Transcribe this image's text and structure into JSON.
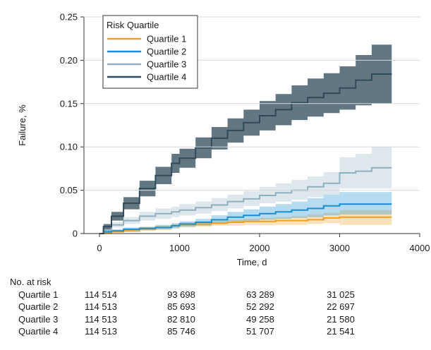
{
  "chart_data": {
    "type": "line",
    "ylabel": "Failure, %",
    "xlabel": "Time, d",
    "xlim": [
      0,
      4000
    ],
    "ylim": [
      0,
      0.25
    ],
    "x_ticks": [
      "0",
      "1000",
      "2000",
      "3000",
      "4000"
    ],
    "y_ticks": [
      "0",
      "0.05",
      "0.10",
      "0.15",
      "0.20",
      "0.25"
    ],
    "legend_title": "Risk Quartile",
    "legend_position": "top-left",
    "series": [
      {
        "name": "Quartile 1",
        "color": "#f0a020",
        "x": [
          0,
          50,
          150,
          300,
          500,
          700,
          900,
          1000,
          1200,
          1400,
          1600,
          1800,
          2000,
          2200,
          2400,
          2600,
          2800,
          3000,
          3200,
          3400,
          3650
        ],
        "y": [
          0,
          0.001,
          0.002,
          0.003,
          0.005,
          0.007,
          0.009,
          0.01,
          0.011,
          0.012,
          0.013,
          0.014,
          0.014,
          0.015,
          0.015,
          0.016,
          0.018,
          0.019,
          0.019,
          0.019,
          0.019
        ],
        "lower": [
          0,
          0.0,
          0.001,
          0.002,
          0.003,
          0.004,
          0.006,
          0.007,
          0.008,
          0.009,
          0.009,
          0.01,
          0.01,
          0.01,
          0.01,
          0.011,
          0.012,
          0.01,
          0.01,
          0.01,
          0.01
        ],
        "upper": [
          0,
          0.003,
          0.004,
          0.005,
          0.007,
          0.009,
          0.011,
          0.013,
          0.014,
          0.015,
          0.016,
          0.017,
          0.018,
          0.019,
          0.02,
          0.022,
          0.024,
          0.027,
          0.027,
          0.027,
          0.027
        ]
      },
      {
        "name": "Quartile 2",
        "color": "#1a8fd0",
        "x": [
          0,
          50,
          150,
          300,
          500,
          700,
          900,
          1000,
          1200,
          1400,
          1600,
          1800,
          2000,
          2200,
          2400,
          2600,
          2800,
          3000,
          3200,
          3400,
          3650
        ],
        "y": [
          0,
          0.002,
          0.003,
          0.005,
          0.006,
          0.007,
          0.009,
          0.011,
          0.013,
          0.016,
          0.019,
          0.021,
          0.023,
          0.025,
          0.027,
          0.029,
          0.032,
          0.034,
          0.034,
          0.034,
          0.034
        ],
        "lower": [
          0,
          0.001,
          0.002,
          0.003,
          0.004,
          0.005,
          0.006,
          0.008,
          0.009,
          0.011,
          0.013,
          0.015,
          0.016,
          0.017,
          0.018,
          0.019,
          0.021,
          0.022,
          0.022,
          0.022,
          0.022
        ],
        "upper": [
          0,
          0.004,
          0.005,
          0.007,
          0.008,
          0.01,
          0.012,
          0.014,
          0.017,
          0.021,
          0.025,
          0.028,
          0.031,
          0.034,
          0.037,
          0.041,
          0.045,
          0.048,
          0.048,
          0.048,
          0.048
        ]
      },
      {
        "name": "Quartile 3",
        "color": "#8fb0c0",
        "x": [
          0,
          50,
          150,
          300,
          500,
          700,
          900,
          1000,
          1200,
          1400,
          1600,
          1800,
          2000,
          2200,
          2400,
          2600,
          2800,
          3000,
          3200,
          3400,
          3650
        ],
        "y": [
          0,
          0.004,
          0.01,
          0.015,
          0.02,
          0.023,
          0.025,
          0.027,
          0.03,
          0.033,
          0.037,
          0.04,
          0.044,
          0.047,
          0.05,
          0.054,
          0.058,
          0.07,
          0.072,
          0.076,
          0.076
        ],
        "lower": [
          0,
          0.002,
          0.007,
          0.011,
          0.015,
          0.017,
          0.019,
          0.021,
          0.023,
          0.026,
          0.029,
          0.032,
          0.035,
          0.037,
          0.039,
          0.042,
          0.045,
          0.052,
          0.052,
          0.052,
          0.052
        ],
        "upper": [
          0,
          0.006,
          0.013,
          0.019,
          0.025,
          0.029,
          0.031,
          0.034,
          0.037,
          0.041,
          0.045,
          0.049,
          0.054,
          0.058,
          0.062,
          0.066,
          0.071,
          0.088,
          0.092,
          0.1,
          0.1
        ]
      },
      {
        "name": "Quartile 4",
        "color": "#2f4a5a",
        "x": [
          0,
          50,
          150,
          300,
          500,
          700,
          900,
          1000,
          1200,
          1400,
          1600,
          1800,
          2000,
          2200,
          2400,
          2600,
          2800,
          3000,
          3200,
          3400,
          3650
        ],
        "y": [
          0,
          0.008,
          0.02,
          0.035,
          0.052,
          0.067,
          0.081,
          0.087,
          0.099,
          0.11,
          0.119,
          0.128,
          0.136,
          0.143,
          0.151,
          0.157,
          0.162,
          0.168,
          0.177,
          0.184,
          0.184
        ],
        "lower": [
          0,
          0.005,
          0.015,
          0.028,
          0.043,
          0.057,
          0.07,
          0.076,
          0.087,
          0.097,
          0.105,
          0.113,
          0.119,
          0.125,
          0.131,
          0.135,
          0.139,
          0.143,
          0.148,
          0.15,
          0.15
        ],
        "upper": [
          0,
          0.011,
          0.025,
          0.042,
          0.061,
          0.077,
          0.092,
          0.098,
          0.111,
          0.123,
          0.133,
          0.143,
          0.153,
          0.161,
          0.171,
          0.179,
          0.185,
          0.193,
          0.206,
          0.218,
          0.218
        ]
      }
    ]
  },
  "risk_table": {
    "title": "No. at risk",
    "rows": [
      {
        "label": "Quartile 1",
        "values": [
          "114 514",
          "93 698",
          "63 289",
          "31 025"
        ]
      },
      {
        "label": "Quartile 2",
        "values": [
          "114 513",
          "85 693",
          "52 292",
          "22 697"
        ]
      },
      {
        "label": "Quartile 3",
        "values": [
          "114 513",
          "82 810",
          "49 258",
          "21 580"
        ]
      },
      {
        "label": "Quartile 4",
        "values": [
          "114 513",
          "85 746",
          "51 707",
          "21 541"
        ]
      }
    ]
  }
}
